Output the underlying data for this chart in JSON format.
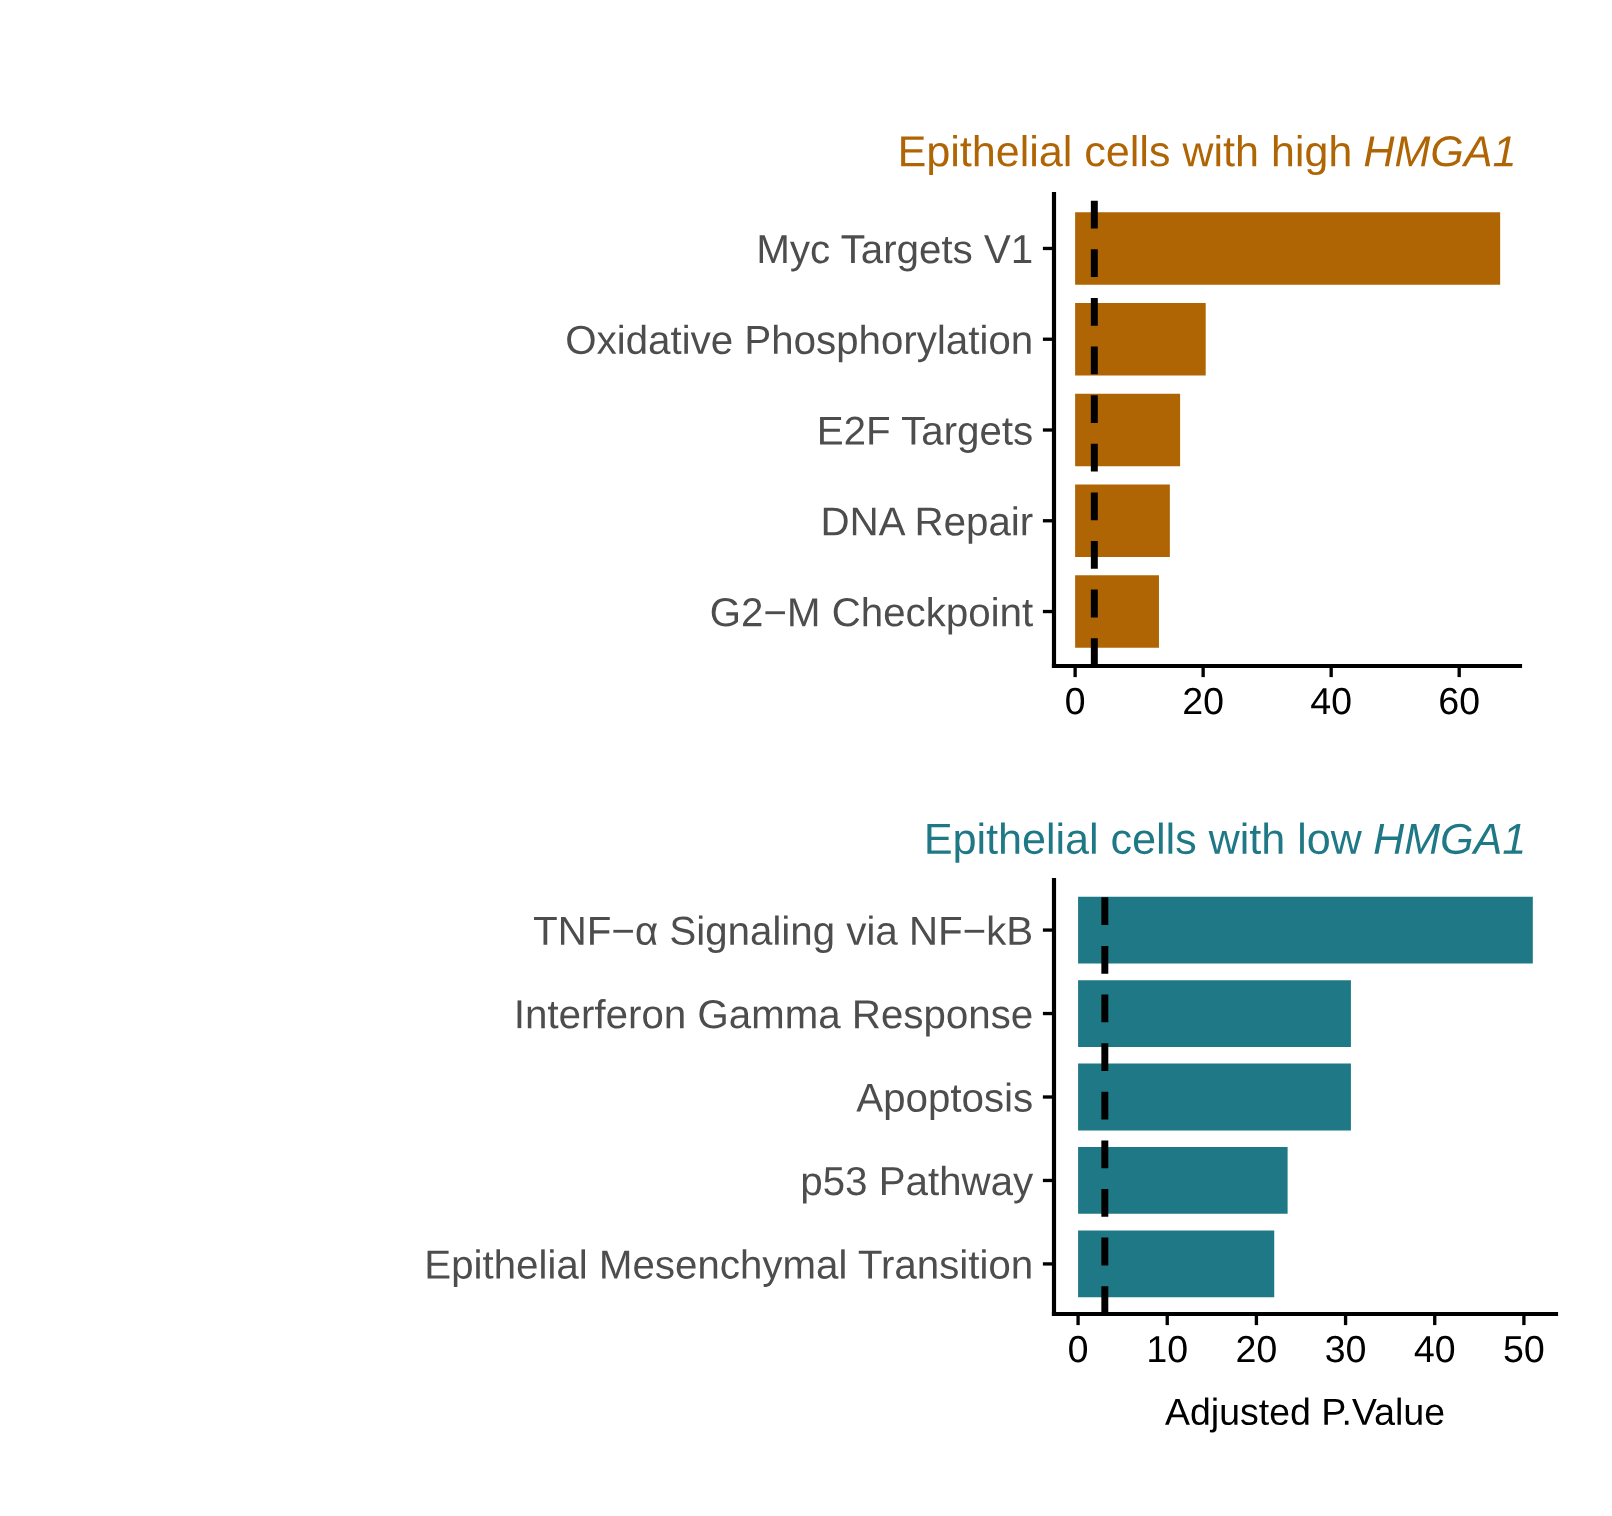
{
  "chart_data": [
    {
      "type": "bar",
      "orientation": "horizontal",
      "title": "Epithelial cells with high HMGA1",
      "categories": [
        "Myc Targets V1",
        "Oxidative Phosphorylation",
        "E2F Targets",
        "DNA Repair",
        "G2−M Checkpoint"
      ],
      "series": [
        {
          "color": "#b06505",
          "values": [
            66.4,
            20.4,
            16.4,
            14.8,
            13.1
          ]
        }
      ],
      "xlim": [
        -3.3,
        69.5
      ],
      "xticks": [
        0,
        20,
        40,
        60
      ],
      "ref_lines": [
        {
          "axis": "x",
          "value": 3,
          "color": "#000000",
          "line_style": "dashed"
        }
      ],
      "grid": false,
      "legend": false
    },
    {
      "type": "bar",
      "orientation": "horizontal",
      "title": "Epithelial cells with low HMGA1",
      "xlabel": "Adjusted P.Value",
      "categories": [
        "TNF−α Signaling via NF−kB",
        "Interferon Gamma Response",
        "Apoptosis",
        "p53 Pathway",
        "Epithelial Mesenchymal Transition"
      ],
      "series": [
        {
          "color": "#1f7885",
          "values": [
            51.0,
            30.6,
            30.6,
            23.5,
            22.0
          ]
        }
      ],
      "xlim": [
        -2.7,
        53.6
      ],
      "xticks": [
        0,
        10,
        20,
        30,
        40,
        50
      ],
      "ref_lines": [
        {
          "axis": "x",
          "value": 3,
          "color": "#000000",
          "line_style": "dashed"
        }
      ],
      "grid": false,
      "legend": false
    }
  ]
}
